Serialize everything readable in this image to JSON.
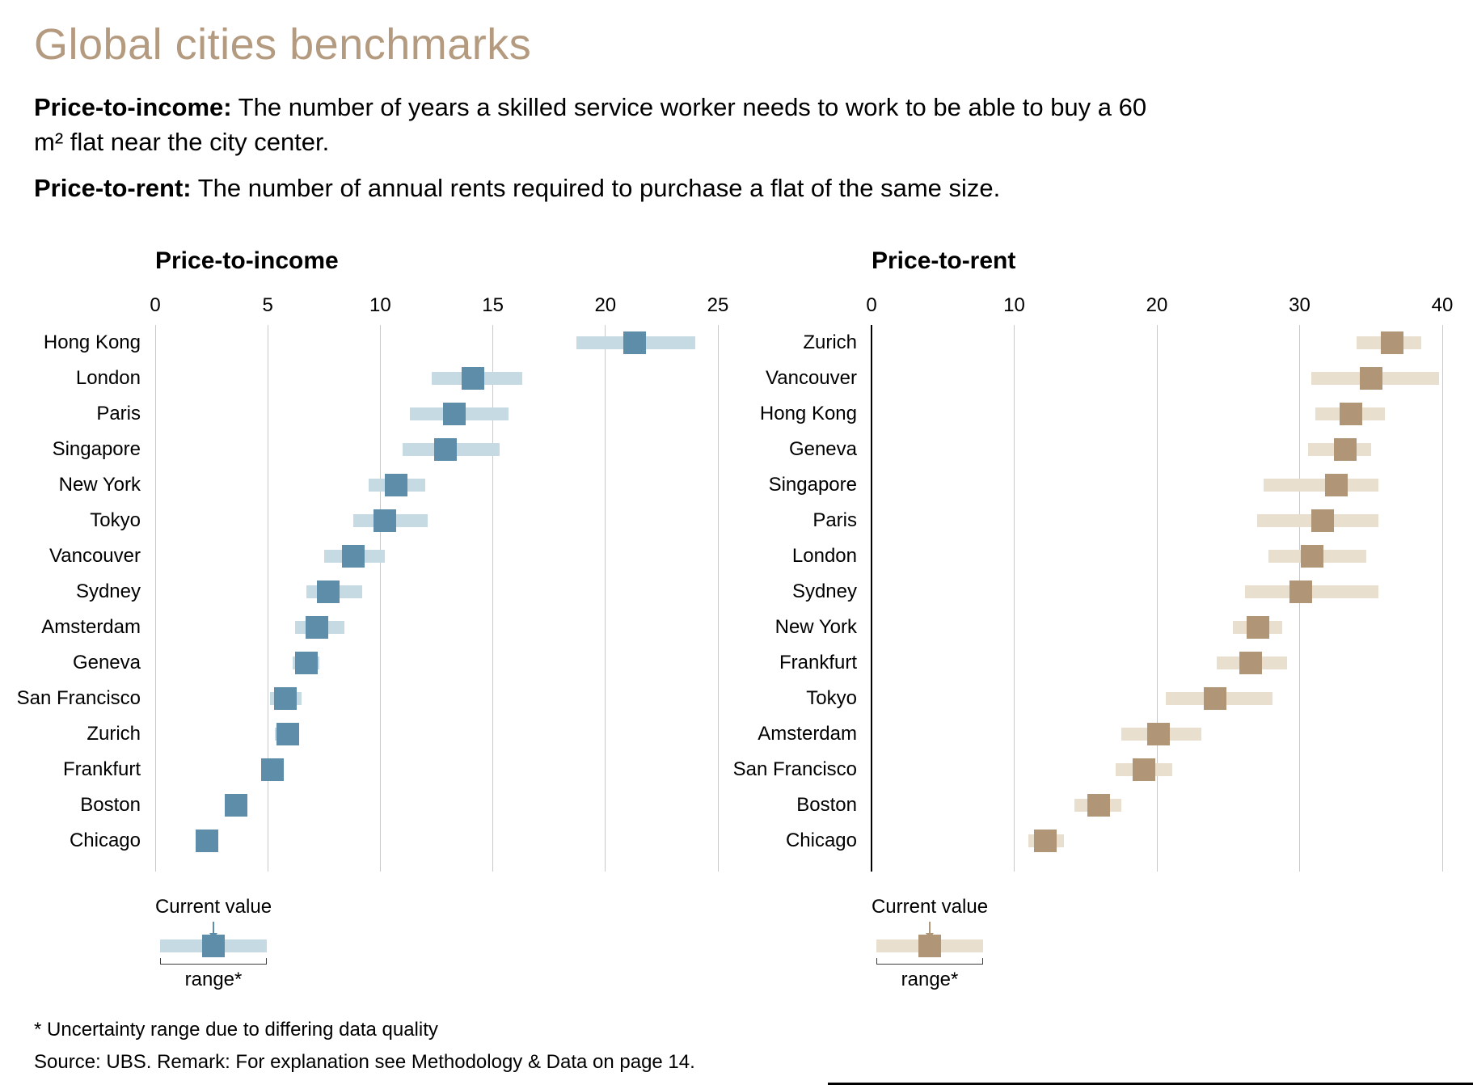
{
  "page": {
    "title": "Global cities benchmarks",
    "definitions": [
      {
        "term": "Price-to-income:",
        "text": " The number of years a skilled service worker needs to work to be able to buy a 60 m² flat near the city center."
      },
      {
        "term": "Price-to-rent:",
        "text": " The number of annual rents required to purchase a flat of the same size."
      }
    ],
    "footnote": "* Uncertainty range due to differing data quality",
    "source": "Source: UBS. Remark: For explanation see Methodology & Data on page 14."
  },
  "legend": {
    "current_value_label": "Current value",
    "range_label": "range*"
  },
  "colors": {
    "title": "#b49a7e",
    "income_value": "#5e8da9",
    "income_range": "#c6dae3",
    "rent_value": "#b09677",
    "rent_range": "#e9dfce",
    "gridline": "#c9c9c9",
    "zero_axis": "#000000"
  },
  "chart_data": [
    {
      "type": "range-dot",
      "title": "Price-to-income",
      "xlim": [
        0,
        25
      ],
      "ticks": [
        0,
        5,
        10,
        15,
        20,
        25
      ],
      "zero_axis_line": false,
      "legend_position": "bottom-left",
      "rows": [
        {
          "city": "Hong Kong",
          "value": 21.3,
          "min": 18.7,
          "max": 24.0
        },
        {
          "city": "London",
          "value": 14.1,
          "min": 12.3,
          "max": 16.3
        },
        {
          "city": "Paris",
          "value": 13.3,
          "min": 11.3,
          "max": 15.7
        },
        {
          "city": "Singapore",
          "value": 12.9,
          "min": 11.0,
          "max": 15.3
        },
        {
          "city": "New York",
          "value": 10.7,
          "min": 9.5,
          "max": 12.0
        },
        {
          "city": "Tokyo",
          "value": 10.2,
          "min": 8.8,
          "max": 12.1
        },
        {
          "city": "Vancouver",
          "value": 8.8,
          "min": 7.5,
          "max": 10.2
        },
        {
          "city": "Sydney",
          "value": 7.7,
          "min": 6.7,
          "max": 9.2
        },
        {
          "city": "Amsterdam",
          "value": 7.2,
          "min": 6.2,
          "max": 8.4
        },
        {
          "city": "Geneva",
          "value": 6.7,
          "min": 6.1,
          "max": 7.3
        },
        {
          "city": "San Francisco",
          "value": 5.8,
          "min": 5.1,
          "max": 6.5
        },
        {
          "city": "Zurich",
          "value": 5.9,
          "min": 5.3,
          "max": 6.4
        },
        {
          "city": "Frankfurt",
          "value": 5.2,
          "min": 4.9,
          "max": 5.6
        },
        {
          "city": "Boston",
          "value": 3.6,
          "min": 3.3,
          "max": 3.9
        },
        {
          "city": "Chicago",
          "value": 2.3,
          "min": 2.0,
          "max": 2.6
        }
      ]
    },
    {
      "type": "range-dot",
      "title": "Price-to-rent",
      "xlim": [
        0,
        40
      ],
      "ticks": [
        0,
        10,
        20,
        30,
        40
      ],
      "zero_axis_line": true,
      "legend_position": "bottom-left",
      "rows": [
        {
          "city": "Zurich",
          "value": 36.5,
          "min": 34.0,
          "max": 38.5
        },
        {
          "city": "Vancouver",
          "value": 35.0,
          "min": 30.8,
          "max": 39.8
        },
        {
          "city": "Hong Kong",
          "value": 33.6,
          "min": 31.1,
          "max": 36.0
        },
        {
          "city": "Geneva",
          "value": 33.2,
          "min": 30.6,
          "max": 35.0
        },
        {
          "city": "Singapore",
          "value": 32.6,
          "min": 27.5,
          "max": 35.5
        },
        {
          "city": "Paris",
          "value": 31.6,
          "min": 27.0,
          "max": 35.5
        },
        {
          "city": "London",
          "value": 30.9,
          "min": 27.8,
          "max": 34.7
        },
        {
          "city": "Sydney",
          "value": 30.1,
          "min": 26.2,
          "max": 35.5
        },
        {
          "city": "New York",
          "value": 27.1,
          "min": 25.3,
          "max": 28.8
        },
        {
          "city": "Frankfurt",
          "value": 26.6,
          "min": 24.2,
          "max": 29.1
        },
        {
          "city": "Tokyo",
          "value": 24.1,
          "min": 20.6,
          "max": 28.1
        },
        {
          "city": "Amsterdam",
          "value": 20.1,
          "min": 17.5,
          "max": 23.1
        },
        {
          "city": "San Francisco",
          "value": 19.1,
          "min": 17.1,
          "max": 21.1
        },
        {
          "city": "Boston",
          "value": 15.9,
          "min": 14.2,
          "max": 17.5
        },
        {
          "city": "Chicago",
          "value": 12.2,
          "min": 11.0,
          "max": 13.5
        }
      ]
    }
  ]
}
